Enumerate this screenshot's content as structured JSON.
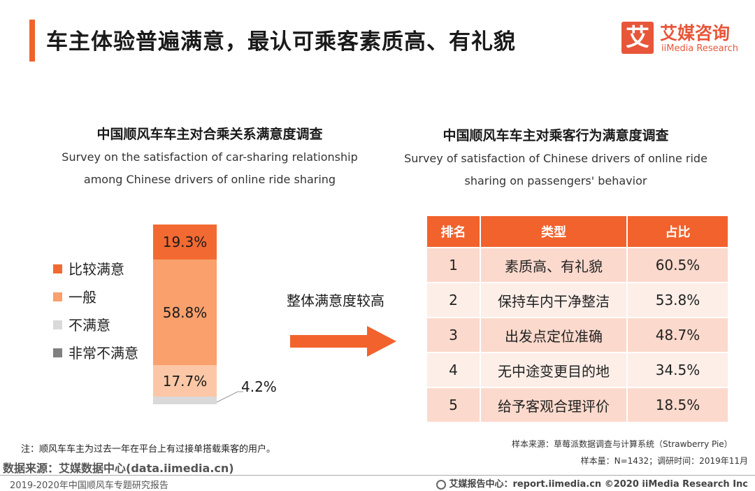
{
  "header": {
    "title": "车主体验普遍满意，最认可乘客素质高、有礼貌",
    "logo_char": "艾",
    "logo_cn": "艾媒咨询",
    "logo_en": "iiMedia Research"
  },
  "left_section": {
    "title_cn": "中国顺风车车主对合乘关系满意度调查",
    "title_en": "Survey on the satisfaction of car-sharing relationship among Chinese drivers of online ride sharing"
  },
  "right_section": {
    "title_cn": "中国顺风车车主对乘客行为满意度调查",
    "title_en": "Survey of satisfaction of Chinese drivers of online ride sharing on  passengers' behavior"
  },
  "middle_text": "整体满意度较高",
  "colors": {
    "accent": "#f2622c",
    "very_satisfied": "#f26a32",
    "satisfied": "#f9a06c",
    "neutral": "#fcc7a6",
    "unsatisfied": "#d9d9d9",
    "very_unsatisfied": "#808080"
  },
  "chart_data": {
    "type": "bar",
    "stacked": true,
    "legend": [
      "比较满意",
      "一般",
      "不满意",
      "非常不满意"
    ],
    "segments": [
      {
        "label": "19.3%",
        "value": 19.3,
        "color": "#f26a32"
      },
      {
        "label": "58.8%",
        "value": 58.8,
        "color": "#f9a06c"
      },
      {
        "label": "17.7%",
        "value": 17.7,
        "color": "#fcc7a6"
      },
      {
        "label": "4.2%",
        "value": 4.2,
        "color": "#d9d9d9"
      }
    ]
  },
  "table": {
    "headers": [
      "排名",
      "类型",
      "占比"
    ],
    "rows": [
      {
        "rank": "1",
        "type": "素质高、有礼貌",
        "pct": "60.5%"
      },
      {
        "rank": "2",
        "type": "保持车内干净整洁",
        "pct": "53.8%"
      },
      {
        "rank": "3",
        "type": "出发点定位准确",
        "pct": "48.7%"
      },
      {
        "rank": "4",
        "type": "无中途变更目的地",
        "pct": "34.5%"
      },
      {
        "rank": "5",
        "type": "给予客观合理评价",
        "pct": "18.5%"
      }
    ]
  },
  "footer": {
    "note": "注：顺风车车主为过去一年在平台上有过接单搭载乘客的用户。",
    "sample_source": "样本来源：草莓派数据调查与计算系统（Strawberry Pie）",
    "sample_size": "样本量：N=1432；调研时间：2019年11月",
    "data_source": "数据来源：艾媒数据中心(data.iimedia.cn)",
    "report_name": "2019-2020年中国顺风车专题研究报告",
    "report_center": "艾媒报告中心：report.iimedia.cn   ©2020  iiMedia Research  Inc"
  }
}
